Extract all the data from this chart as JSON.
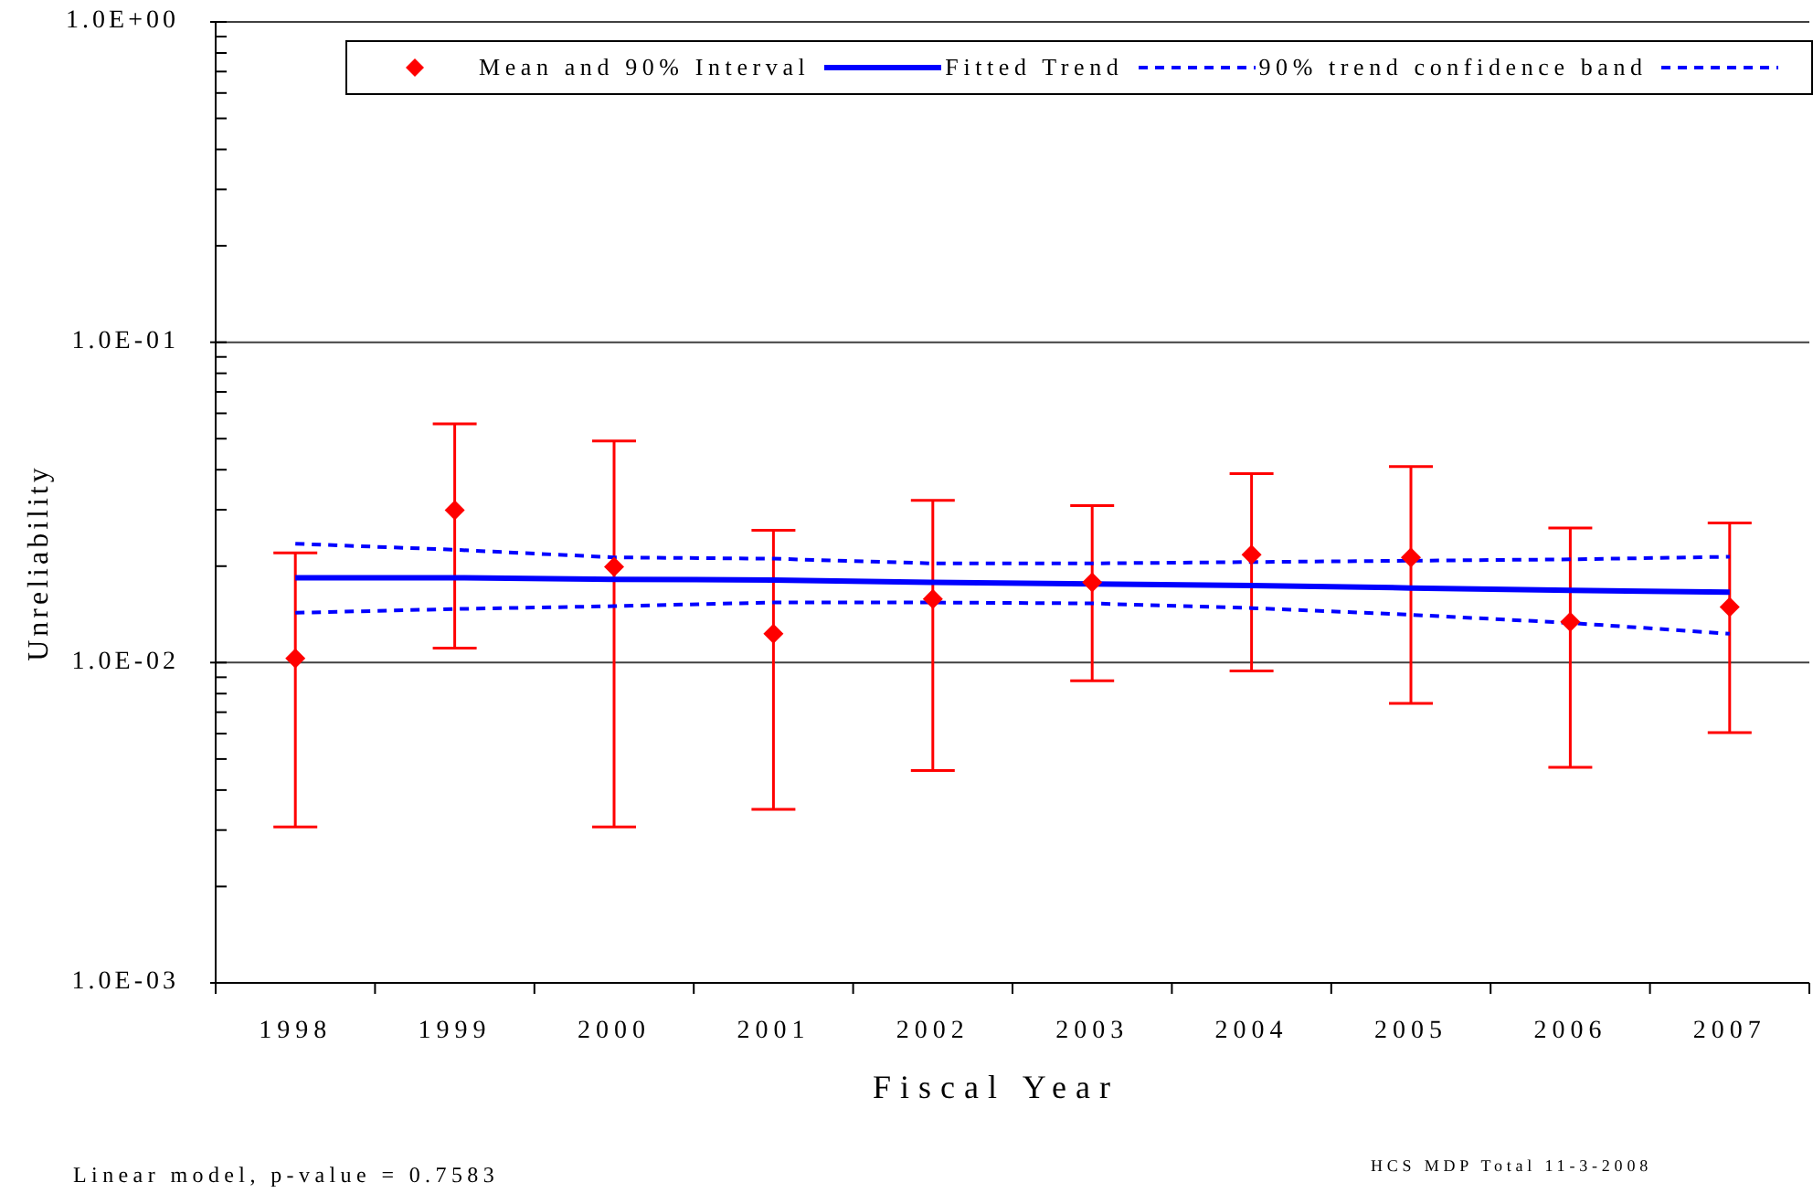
{
  "chart_data": {
    "type": "scatter",
    "xlabel": "Fiscal Year",
    "ylabel": "Unreliability",
    "categories": [
      "1998",
      "1999",
      "2000",
      "2001",
      "2002",
      "2003",
      "2004",
      "2005",
      "2006",
      "2007"
    ],
    "log": "y",
    "ylim": [
      0.001,
      1
    ],
    "yticks": [
      {
        "value": 0.001,
        "label": "1.0E-03"
      },
      {
        "value": 0.002,
        "label": null
      },
      {
        "value": 0.003,
        "label": null
      },
      {
        "value": 0.004,
        "label": null
      },
      {
        "value": 0.005,
        "label": null
      },
      {
        "value": 0.006,
        "label": null
      },
      {
        "value": 0.007,
        "label": null
      },
      {
        "value": 0.008,
        "label": null
      },
      {
        "value": 0.009,
        "label": null
      },
      {
        "value": 0.01,
        "label": "1.0E-02"
      },
      {
        "value": 0.02,
        "label": null
      },
      {
        "value": 0.03,
        "label": null
      },
      {
        "value": 0.04,
        "label": null
      },
      {
        "value": 0.05,
        "label": null
      },
      {
        "value": 0.06,
        "label": null
      },
      {
        "value": 0.07,
        "label": null
      },
      {
        "value": 0.08,
        "label": null
      },
      {
        "value": 0.09,
        "label": null
      },
      {
        "value": 0.1,
        "label": "1.0E-01"
      },
      {
        "value": 0.2,
        "label": null
      },
      {
        "value": 0.3,
        "label": null
      },
      {
        "value": 0.4,
        "label": null
      },
      {
        "value": 0.5,
        "label": null
      },
      {
        "value": 0.6,
        "label": null
      },
      {
        "value": 0.7,
        "label": null
      },
      {
        "value": 0.8,
        "label": null
      },
      {
        "value": 0.9,
        "label": null
      },
      {
        "value": 1,
        "label": "1.0E+00"
      }
    ],
    "grid": "y",
    "legend": "top",
    "marker": "diamond",
    "series": [
      {
        "name": "Mean and 90% Interval",
        "color": "#ff0000",
        "values": [
          0.0103,
          0.0299,
          0.0199,
          0.0123,
          0.0158,
          0.0178,
          0.0217,
          0.0213,
          0.0134,
          0.0149
        ],
        "errors": [
          [
            0.00307,
            0.022
          ],
          [
            0.0111,
            0.0556
          ],
          [
            0.00307,
            0.0492
          ],
          [
            0.00348,
            0.0259
          ],
          [
            0.0046,
            0.0321
          ],
          [
            0.00877,
            0.0309
          ],
          [
            0.00942,
            0.0389
          ],
          [
            0.00746,
            0.0409
          ],
          [
            0.00471,
            0.0263
          ],
          [
            0.00604,
            0.0273
          ]
        ]
      },
      {
        "name": "Fitted Trend",
        "type": "line",
        "color": "#0000ff",
        "marker": "none",
        "line_style": "solid",
        "values": [
          0.0184,
          0.0184,
          0.0182,
          0.0181,
          0.0178,
          0.0176,
          0.0174,
          0.0171,
          0.0168,
          0.0166
        ]
      },
      {
        "name": "90% trend confidence band",
        "type": "line",
        "color": "#0000ff",
        "marker": "none",
        "line_style": "dashed",
        "values": [
          0.0235,
          0.0225,
          0.0213,
          0.0211,
          0.0204,
          0.0204,
          0.0206,
          0.0208,
          0.021,
          0.0214
        ]
      },
      {
        "type": "line",
        "color": "#0000ff",
        "marker": "none",
        "line_style": "dashed",
        "values": [
          0.0143,
          0.0147,
          0.015,
          0.0154,
          0.0154,
          0.0153,
          0.0148,
          0.0141,
          0.0133,
          0.0123
        ]
      }
    ],
    "annotations": [
      "Linear model, p-value = 0.7583",
      "HCS MDP Total 11-3-2008"
    ]
  }
}
